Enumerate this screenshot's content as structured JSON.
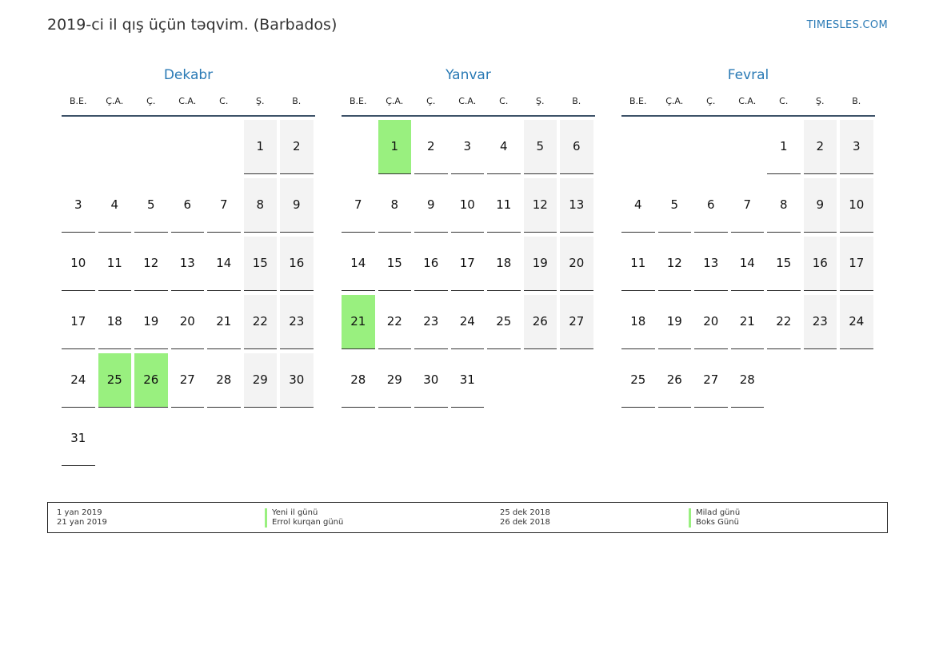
{
  "page": {
    "title": "2019-ci il qış üçün təqvim. (Barbados)",
    "site": "TIMESLES.COM"
  },
  "weekdays": [
    "B.E.",
    "Ç.A.",
    "Ç.",
    "C.A.",
    "C.",
    "Ş.",
    "B."
  ],
  "colors": {
    "holiday": "#99f07f",
    "weekend": "#f3f3f3",
    "accent": "#2a7ab5"
  },
  "months": [
    {
      "name": "Dekabr",
      "start_offset": 5,
      "days": 31,
      "holidays": [
        25,
        26
      ]
    },
    {
      "name": "Yanvar",
      "start_offset": 1,
      "days": 31,
      "holidays": [
        1,
        21
      ]
    },
    {
      "name": "Fevral",
      "start_offset": 4,
      "days": 28,
      "holidays": []
    }
  ],
  "legend": {
    "left": [
      {
        "date": "1 yan 2019",
        "name": "Yeni il günü"
      },
      {
        "date": "21 yan 2019",
        "name": "Errol kurqan günü"
      }
    ],
    "right": [
      {
        "date": "25 dek 2018",
        "name": "Milad günü"
      },
      {
        "date": "26 dek 2018",
        "name": "Boks Günü"
      }
    ]
  }
}
